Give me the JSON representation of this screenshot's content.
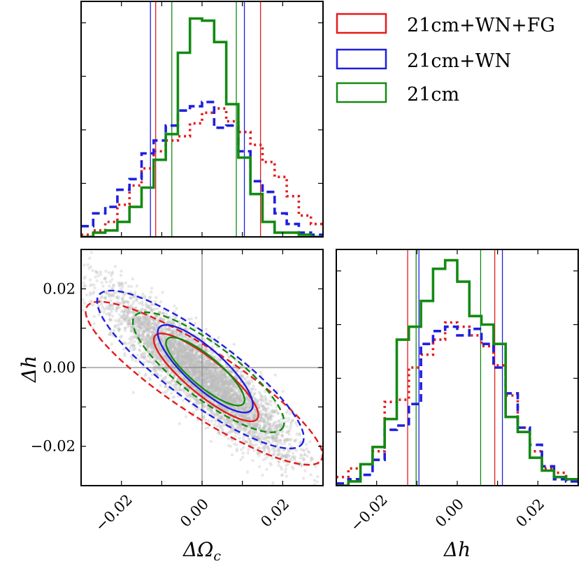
{
  "colors": {
    "fg": "#e41a1c",
    "wn": "#1f1fe0",
    "cm": "#138a13",
    "scatter": "#bdbdbd"
  },
  "legend": [
    {
      "label": "21cm+WN+FG",
      "color": "#e41a1c"
    },
    {
      "label": "21cm+WN",
      "color": "#1f1fe0"
    },
    {
      "label": "21cm",
      "color": "#138a13"
    }
  ],
  "chart_data": [
    {
      "panel": "top-marginal",
      "type": "line",
      "step": true,
      "x_range": [
        -0.03,
        0.03
      ],
      "y_range": [
        0,
        1.1
      ],
      "bin_edges": [
        -0.03,
        -0.027,
        -0.024,
        -0.021,
        -0.018,
        -0.015,
        -0.012,
        -0.009,
        -0.006,
        -0.003,
        0.0,
        0.003,
        0.006,
        0.009,
        0.012,
        0.015,
        0.018,
        0.021,
        0.024,
        0.027,
        0.03
      ],
      "series": [
        {
          "name": "21cm+WN+FG",
          "style": "dotted",
          "values": [
            0.01,
            0.03,
            0.07,
            0.15,
            0.24,
            0.32,
            0.4,
            0.45,
            0.47,
            0.53,
            0.58,
            0.6,
            0.54,
            0.49,
            0.43,
            0.35,
            0.28,
            0.19,
            0.1,
            0.06
          ]
        },
        {
          "name": "21cm+WN",
          "style": "dashed",
          "values": [
            0.05,
            0.11,
            0.14,
            0.22,
            0.27,
            0.39,
            0.45,
            0.52,
            0.59,
            0.61,
            0.63,
            0.51,
            0.52,
            0.4,
            0.26,
            0.21,
            0.11,
            0.06,
            0.02,
            0.01
          ]
        },
        {
          "name": "21cm",
          "style": "solid",
          "values": [
            0.0,
            0.02,
            0.03,
            0.07,
            0.14,
            0.23,
            0.36,
            0.48,
            0.86,
            1.02,
            1.01,
            0.91,
            0.62,
            0.37,
            0.2,
            0.07,
            0.02,
            0.02,
            0.01,
            0.0
          ]
        }
      ],
      "intervals": [
        {
          "name": "21cm+WN+FG",
          "lo": -0.0115,
          "hi": 0.0145
        },
        {
          "name": "21cm+WN",
          "lo": -0.0128,
          "hi": 0.0105
        },
        {
          "name": "21cm",
          "lo": -0.0075,
          "hi": 0.0085
        }
      ]
    },
    {
      "panel": "joint",
      "type": "scatter",
      "xlabel": "ΔΩ_c",
      "ylabel": "Δh",
      "x_range": [
        -0.03,
        0.03
      ],
      "y_range": [
        -0.03,
        0.03
      ],
      "x_ticks": [
        -0.02,
        0.0,
        0.02
      ],
      "x_tick_labels": [
        "−0.02",
        "0.00",
        "0.02"
      ],
      "y_ticks": [
        -0.02,
        0.0,
        0.02
      ],
      "y_tick_labels": [
        "−0.02",
        "0.00",
        "0.02"
      ],
      "truth": [
        0.0,
        0.0
      ],
      "samples": {
        "count": 5000,
        "center": [
          0.0,
          -0.002
        ],
        "sx": 0.011,
        "sy": 0.01,
        "corr": -0.9
      },
      "ellipses": [
        {
          "name": "21cm+WN+FG",
          "level": "1-sigma",
          "cx": 0.001,
          "cy": -0.0025,
          "a": 0.0165,
          "b": 0.0045,
          "angle_deg": -40
        },
        {
          "name": "21cm+WN+FG",
          "level": "2-sigma",
          "cx": 0.0005,
          "cy": -0.004,
          "a": 0.035,
          "b": 0.0082,
          "angle_deg": -34
        },
        {
          "name": "21cm+WN",
          "level": "1-sigma",
          "cx": 0.0008,
          "cy": -0.0003,
          "a": 0.0155,
          "b": 0.0048,
          "angle_deg": -43
        },
        {
          "name": "21cm+WN",
          "level": "2-sigma",
          "cx": -0.0004,
          "cy": -0.0005,
          "a": 0.0315,
          "b": 0.0082,
          "angle_deg": -37
        },
        {
          "name": "21cm",
          "level": "1-sigma",
          "cx": 0.0008,
          "cy": -0.001,
          "a": 0.0125,
          "b": 0.0037,
          "angle_deg": -41
        },
        {
          "name": "21cm",
          "level": "2-sigma",
          "cx": 0.0016,
          "cy": -0.0012,
          "a": 0.0232,
          "b": 0.0068,
          "angle_deg": -38
        }
      ]
    },
    {
      "panel": "right-marginal",
      "type": "line",
      "step": true,
      "xlabel": "Δh",
      "x_range": [
        -0.03,
        0.03
      ],
      "y_range": [
        0,
        1.1
      ],
      "x_ticks": [
        -0.02,
        0.0,
        0.02
      ],
      "x_tick_labels": [
        "−0.02",
        "0.00",
        "0.02"
      ],
      "bin_edges": [
        -0.03,
        -0.027,
        -0.024,
        -0.021,
        -0.018,
        -0.015,
        -0.012,
        -0.009,
        -0.006,
        -0.003,
        0.0,
        0.003,
        0.006,
        0.009,
        0.012,
        0.015,
        0.018,
        0.021,
        0.024,
        0.027,
        0.03
      ],
      "series": [
        {
          "name": "21cm+WN+FG",
          "style": "dotted",
          "values": [
            0.04,
            0.08,
            0.1,
            0.16,
            0.39,
            0.4,
            0.55,
            0.61,
            0.68,
            0.76,
            0.74,
            0.7,
            0.65,
            0.56,
            0.42,
            0.27,
            0.16,
            0.08,
            0.06,
            0.03
          ]
        },
        {
          "name": "21cm+WN",
          "style": "dashed",
          "values": [
            0.01,
            0.03,
            0.05,
            0.12,
            0.26,
            0.28,
            0.38,
            0.66,
            0.72,
            0.74,
            0.7,
            0.73,
            0.66,
            0.55,
            0.43,
            0.27,
            0.19,
            0.09,
            0.03,
            0.02
          ]
        },
        {
          "name": "21cm",
          "style": "solid",
          "values": [
            0.0,
            0.02,
            0.1,
            0.18,
            0.31,
            0.68,
            0.74,
            0.86,
            1.01,
            1.05,
            0.95,
            0.79,
            0.75,
            0.66,
            0.32,
            0.25,
            0.13,
            0.07,
            0.04,
            0.03
          ]
        }
      ],
      "intervals": [
        {
          "name": "21cm+WN+FG",
          "lo": -0.0123,
          "hi": 0.0093
        },
        {
          "name": "21cm+WN",
          "lo": -0.0095,
          "hi": 0.0112
        },
        {
          "name": "21cm",
          "lo": -0.0102,
          "hi": 0.0058
        }
      ]
    }
  ],
  "labels": {
    "joint_ylabel": "Δh",
    "joint_xlabel_main": "ΔΩ",
    "joint_xlabel_sub": "c",
    "right_xlabel": "Δh"
  }
}
